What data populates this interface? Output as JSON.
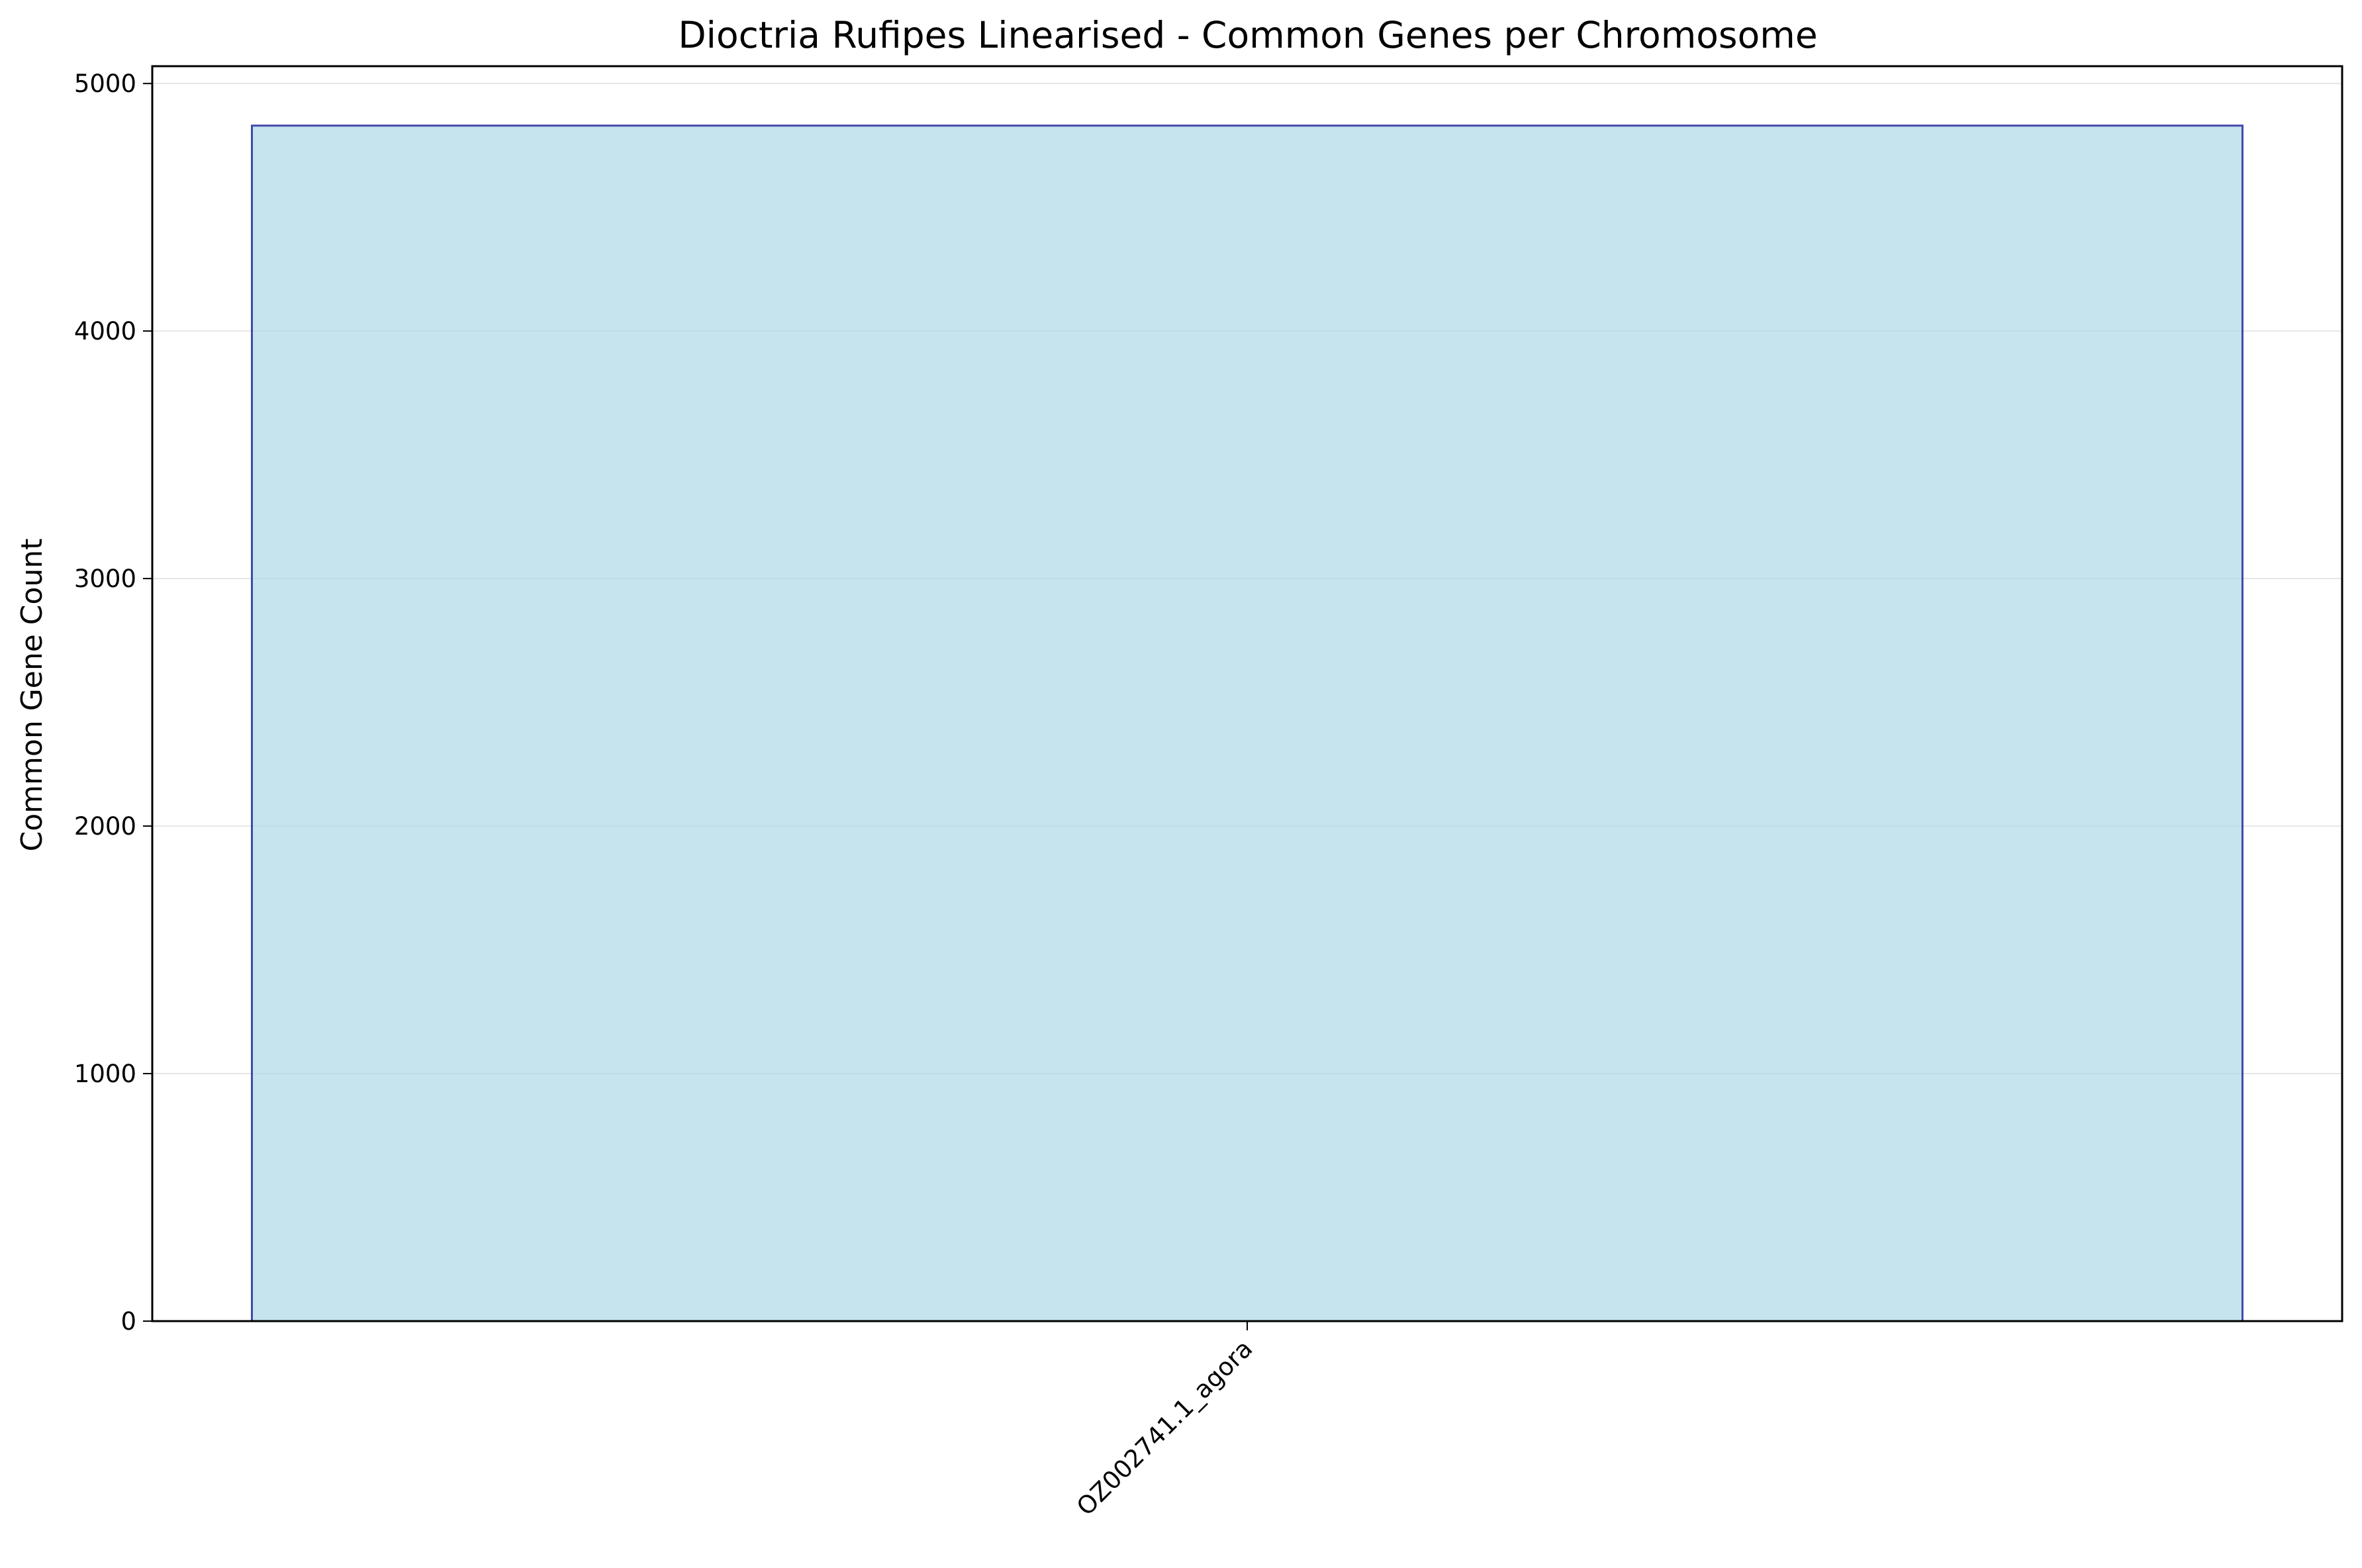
{
  "chart_data": {
    "type": "bar",
    "title": "Dioctria Rufipes Linearised - Common Genes per Chromosome",
    "xlabel": "",
    "ylabel": "Common Gene Count",
    "categories": [
      "OZ002741.1_agora"
    ],
    "values": [
      4830
    ],
    "ylim": [
      0,
      5070
    ],
    "yticks": [
      0,
      1000,
      2000,
      3000,
      4000,
      5000
    ],
    "grid": "y",
    "legend": "none",
    "colors": {
      "bar_fill": "#add8e6",
      "bar_edge": "#00008b",
      "grid": "#e6e6e6",
      "axis": "#000000"
    }
  }
}
